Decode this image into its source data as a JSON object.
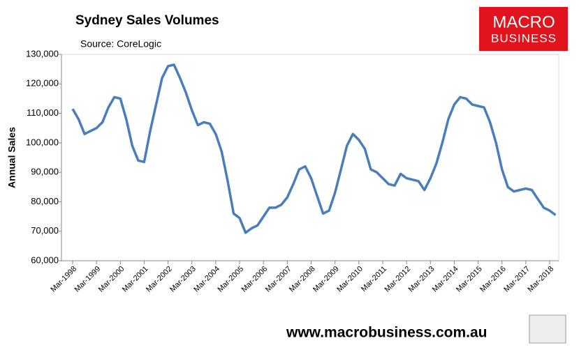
{
  "chart_data": {
    "type": "line",
    "title": "Sydney Sales Volumes",
    "subtitle": "Source: CoreLogic",
    "y_label": "Annual Sales",
    "logo": [
      "MACRO",
      "BUSINESS"
    ],
    "footer": "www.macrobusiness.com.au",
    "color": "#4a7ebb",
    "grid": false,
    "categories": [
      "Mar-1998",
      null,
      null,
      null,
      "Mar-1999",
      null,
      null,
      null,
      "Mar-2000",
      null,
      null,
      null,
      "Mar-2001",
      null,
      null,
      null,
      "Mar-2002",
      null,
      null,
      null,
      "Mar-2003",
      null,
      null,
      null,
      "Mar-2004",
      null,
      null,
      null,
      "Mar-2005",
      null,
      null,
      null,
      "Mar-2006",
      null,
      null,
      null,
      "Mar-2007",
      null,
      null,
      null,
      "Mar-2008",
      null,
      null,
      null,
      "Mar-2009",
      null,
      null,
      null,
      "Mar-2010",
      null,
      null,
      null,
      "Mar-2011",
      null,
      null,
      null,
      "Mar-2012",
      null,
      null,
      null,
      "Mar-2013",
      null,
      null,
      null,
      "Mar-2014",
      null,
      null,
      null,
      "Mar-2015",
      null,
      null,
      null,
      "Mar-2016",
      null,
      null,
      null,
      "Mar-2017",
      null,
      null,
      null,
      "Mar-2018",
      null
    ],
    "values": [
      111500,
      108000,
      103000,
      104000,
      105000,
      107000,
      112000,
      115500,
      115000,
      108000,
      99000,
      94000,
      93500,
      104000,
      113000,
      122000,
      126000,
      126500,
      122000,
      117000,
      111000,
      106000,
      107000,
      106500,
      103000,
      97000,
      87000,
      76000,
      74500,
      69500,
      71000,
      72000,
      75000,
      78000,
      78000,
      79000,
      81500,
      86000,
      91000,
      92000,
      88000,
      82000,
      76000,
      77000,
      83000,
      91000,
      99000,
      103000,
      101000,
      98000,
      91000,
      90000,
      88000,
      86000,
      85500,
      89500,
      88000,
      87500,
      87000,
      84000,
      88000,
      93000,
      100000,
      108000,
      113000,
      115500,
      115000,
      113000,
      112500,
      112000,
      107000,
      100000,
      91000,
      85000,
      83500,
      84000,
      84500,
      84000,
      81000,
      78000,
      77000,
      75500
    ],
    "ylim": [
      60000,
      130000
    ],
    "yticks": [
      {
        "value": 60000,
        "label": "60,000"
      },
      {
        "value": 70000,
        "label": "70,000"
      },
      {
        "value": 80000,
        "label": "80,000"
      },
      {
        "value": 90000,
        "label": "90,000"
      },
      {
        "value": 100000,
        "label": "100,000"
      },
      {
        "value": 110000,
        "label": "110,000"
      },
      {
        "value": 120000,
        "label": "120,000"
      },
      {
        "value": 130000,
        "label": "130,000"
      }
    ]
  }
}
